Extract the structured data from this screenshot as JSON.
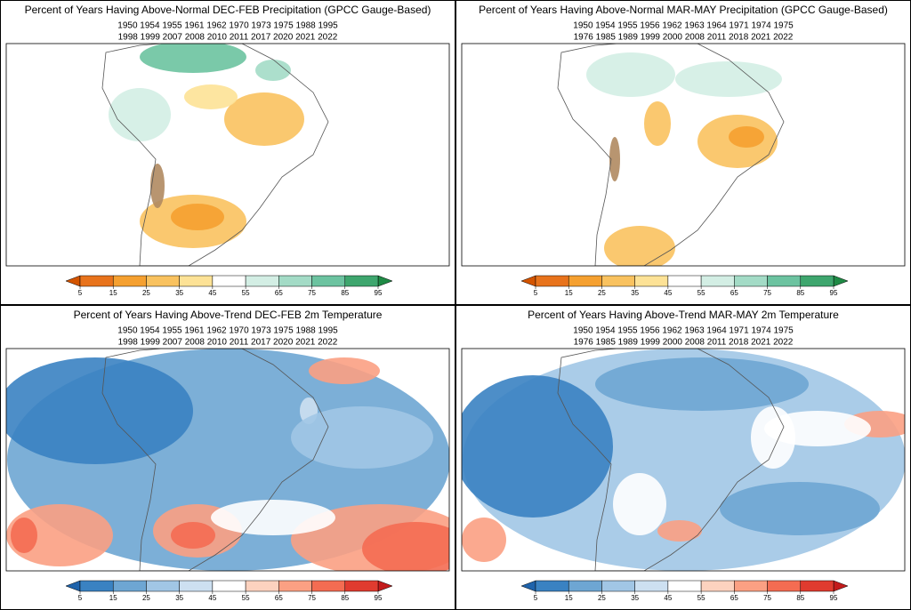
{
  "panels": [
    {
      "title": "Percent of Years Having Above-Normal DEC-FEB Precipitation (GPCC Gauge-Based)",
      "years": [
        "1950 1954 1955 1961 1962 1970 1973 1975 1988 1995",
        "1998 1999 2007 2008 2010 2011 2017 2020 2021 2022"
      ],
      "colorbar": {
        "ticks": [
          5,
          15,
          25,
          35,
          45,
          55,
          65,
          75,
          85,
          95
        ],
        "colors": [
          "#d35400",
          "#e8731c",
          "#f5a030",
          "#f9c25f",
          "#fde296",
          "#ffffff",
          "#d3eee4",
          "#a3dbc6",
          "#6cc3a0",
          "#3ea66e",
          "#1f8a45"
        ]
      }
    },
    {
      "title": "Percent of Years Having Above-Normal MAR-MAY Precipitation (GPCC Gauge-Based)",
      "years": [
        "1950 1954 1955 1956 1962 1963 1964 1971 1974 1975",
        "1976 1985 1989 1999 2000 2008 2011 2018 2021 2022"
      ],
      "colorbar": {
        "ticks": [
          5,
          15,
          25,
          35,
          45,
          55,
          65,
          75,
          85,
          95
        ],
        "colors": [
          "#d35400",
          "#e8731c",
          "#f5a030",
          "#f9c25f",
          "#fde296",
          "#ffffff",
          "#d3eee4",
          "#a3dbc6",
          "#6cc3a0",
          "#3ea66e",
          "#1f8a45"
        ]
      }
    },
    {
      "title": "Percent of Years Having Above-Trend DEC-FEB 2m Temperature",
      "years": [
        "1950 1954 1955 1961 1962 1970 1973 1975 1988 1995",
        "1998 1999 2007 2008 2010 2011 2017 2020 2021 2022"
      ],
      "colorbar": {
        "ticks": [
          5,
          15,
          25,
          35,
          45,
          55,
          65,
          75,
          85,
          95
        ],
        "colors": [
          "#1f63ab",
          "#3a82c2",
          "#6ea6d3",
          "#a1c6e5",
          "#cde0f1",
          "#ffffff",
          "#fcd2bf",
          "#fba083",
          "#f46c52",
          "#e03b2f",
          "#c31b1b"
        ]
      }
    },
    {
      "title": "Percent of Years Having Above-Trend MAR-MAY 2m Temperature",
      "years": [
        "1950 1954 1955 1956 1962 1963 1964 1971 1974 1975",
        "1976 1985 1989 1999 2000 2008 2011 2018 2021 2022"
      ],
      "colorbar": {
        "ticks": [
          5,
          15,
          25,
          35,
          45,
          55,
          65,
          75,
          85,
          95
        ],
        "colors": [
          "#1f63ab",
          "#3a82c2",
          "#6ea6d3",
          "#a1c6e5",
          "#cde0f1",
          "#ffffff",
          "#fcd2bf",
          "#fba083",
          "#f46c52",
          "#e03b2f",
          "#c31b1b"
        ]
      }
    }
  ]
}
